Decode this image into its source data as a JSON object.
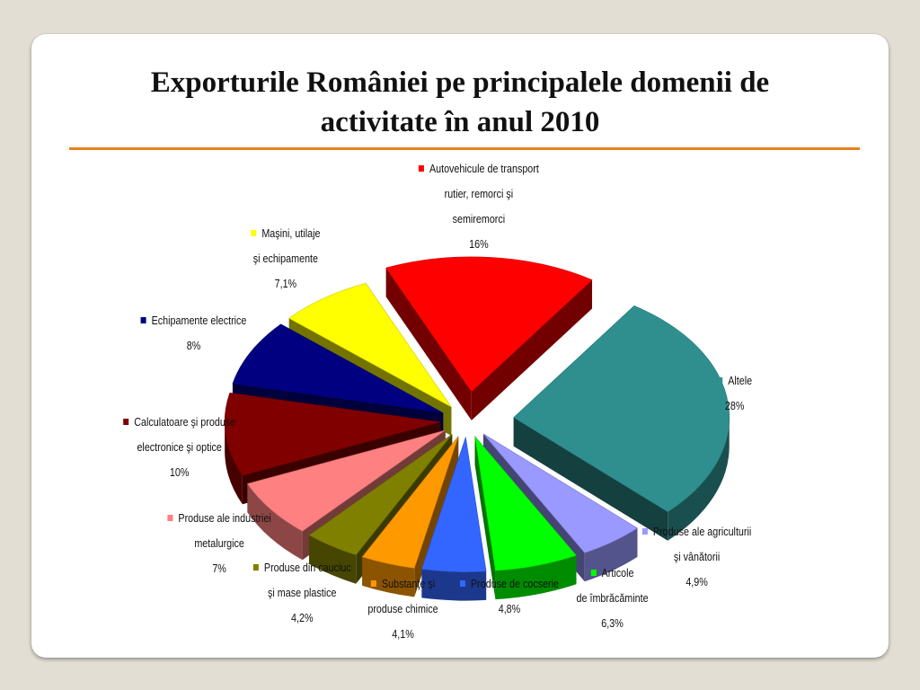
{
  "slide": {
    "title_line1": "Exporturile României pe principalele domenii de",
    "title_line2": "activitate în anul 2010"
  },
  "colors": {
    "accent_rule": "#e8801f",
    "background": "#e3ded3"
  },
  "chart_data": {
    "type": "pie",
    "style": "3d-exploded",
    "title": "Exporturile României pe principalele domenii de activitate în anul 2010",
    "slices": [
      {
        "label_lines": [
          "Altele"
        ],
        "value_label": "28%",
        "value": 28,
        "color": "#2f8f8f"
      },
      {
        "label_lines": [
          "Produse ale agriculturii",
          "şi vânătorii"
        ],
        "value_label": "4,9%",
        "value": 4.9,
        "color": "#9999ff"
      },
      {
        "label_lines": [
          "Articole",
          "de îmbrăcăminte"
        ],
        "value_label": "6,3%",
        "value": 6.3,
        "color": "#00ff00"
      },
      {
        "label_lines": [
          "Produse de cocserie"
        ],
        "value_label": "4,8%",
        "value": 4.8,
        "color": "#3366ff"
      },
      {
        "label_lines": [
          "Substanţe şi",
          "produse chimice"
        ],
        "value_label": "4,1%",
        "value": 4.1,
        "color": "#ff9900"
      },
      {
        "label_lines": [
          "Produse din cauciuc",
          "şi mase plastice"
        ],
        "value_label": "4,2%",
        "value": 4.2,
        "color": "#808000"
      },
      {
        "label_lines": [
          "Produse ale industriei",
          "metalurgice"
        ],
        "value_label": "7%",
        "value": 7,
        "color": "#ff8080"
      },
      {
        "label_lines": [
          "Calculatoare şi produse",
          "electronice şi optice"
        ],
        "value_label": "10%",
        "value": 10,
        "color": "#800000"
      },
      {
        "label_lines": [
          "Echipamente electrice"
        ],
        "value_label": "8%",
        "value": 8,
        "color": "#000080"
      },
      {
        "label_lines": [
          "Maşini, utilaje",
          "şi echipamente"
        ],
        "value_label": "7,1%",
        "value": 7.1,
        "color": "#ffff00"
      },
      {
        "label_lines": [
          "Autovehicule de transport",
          "rutier, remorci şi",
          "semiremorci"
        ],
        "value_label": "16%",
        "value": 16,
        "color": "#ff0000"
      }
    ]
  }
}
